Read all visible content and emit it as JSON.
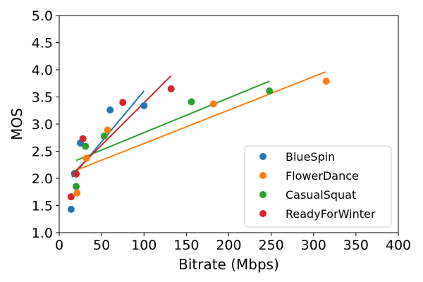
{
  "chart_data": {
    "type": "scatter",
    "title": "",
    "xlabel": "Bitrate (Mbps)",
    "ylabel": "MOS",
    "xlim": [
      0,
      400
    ],
    "ylim": [
      1.0,
      5.0
    ],
    "xticks": [
      0,
      50,
      100,
      150,
      200,
      250,
      300,
      350,
      400
    ],
    "xtick_labels": [
      "0",
      "50",
      "100",
      "150",
      "200",
      "250",
      "300",
      "350",
      "400"
    ],
    "yticks": [
      1.0,
      1.5,
      2.0,
      2.5,
      3.0,
      3.5,
      4.0,
      4.5,
      5.0
    ],
    "ytick_labels": [
      "1.0",
      "1.5",
      "2.0",
      "2.5",
      "3.0",
      "3.5",
      "4.0",
      "4.5",
      "5.0"
    ],
    "grid": false,
    "legend_position": "bottom-right",
    "series": [
      {
        "name": "BlueSpin",
        "color": "#1f77b4",
        "points": [
          [
            14,
            1.43
          ],
          [
            18,
            2.09
          ],
          [
            25,
            2.65
          ],
          [
            60,
            3.26
          ],
          [
            100,
            3.34
          ]
        ],
        "fit_line": [
          [
            15,
            2.02
          ],
          [
            100,
            3.61
          ]
        ]
      },
      {
        "name": "FlowerDance",
        "color": "#ff7f0e",
        "points": [
          [
            21,
            1.73
          ],
          [
            32,
            2.37
          ],
          [
            57,
            2.89
          ],
          [
            182,
            3.37
          ],
          [
            315,
            3.79
          ]
        ],
        "fit_line": [
          [
            20,
            2.15
          ],
          [
            314,
            3.96
          ]
        ]
      },
      {
        "name": "CasualSquat",
        "color": "#2ca02c",
        "points": [
          [
            20,
            1.85
          ],
          [
            31,
            2.59
          ],
          [
            53,
            2.78
          ],
          [
            156,
            3.41
          ],
          [
            248,
            3.61
          ]
        ],
        "fit_line": [
          [
            20,
            2.33
          ],
          [
            248,
            3.79
          ]
        ]
      },
      {
        "name": "ReadyForWinter",
        "color": "#d62728",
        "points": [
          [
            14,
            1.66
          ],
          [
            20,
            2.08
          ],
          [
            28,
            2.73
          ],
          [
            75,
            3.4
          ],
          [
            132,
            3.65
          ]
        ],
        "fit_line": [
          [
            15,
            2.07
          ],
          [
            132,
            3.89
          ]
        ]
      }
    ]
  }
}
